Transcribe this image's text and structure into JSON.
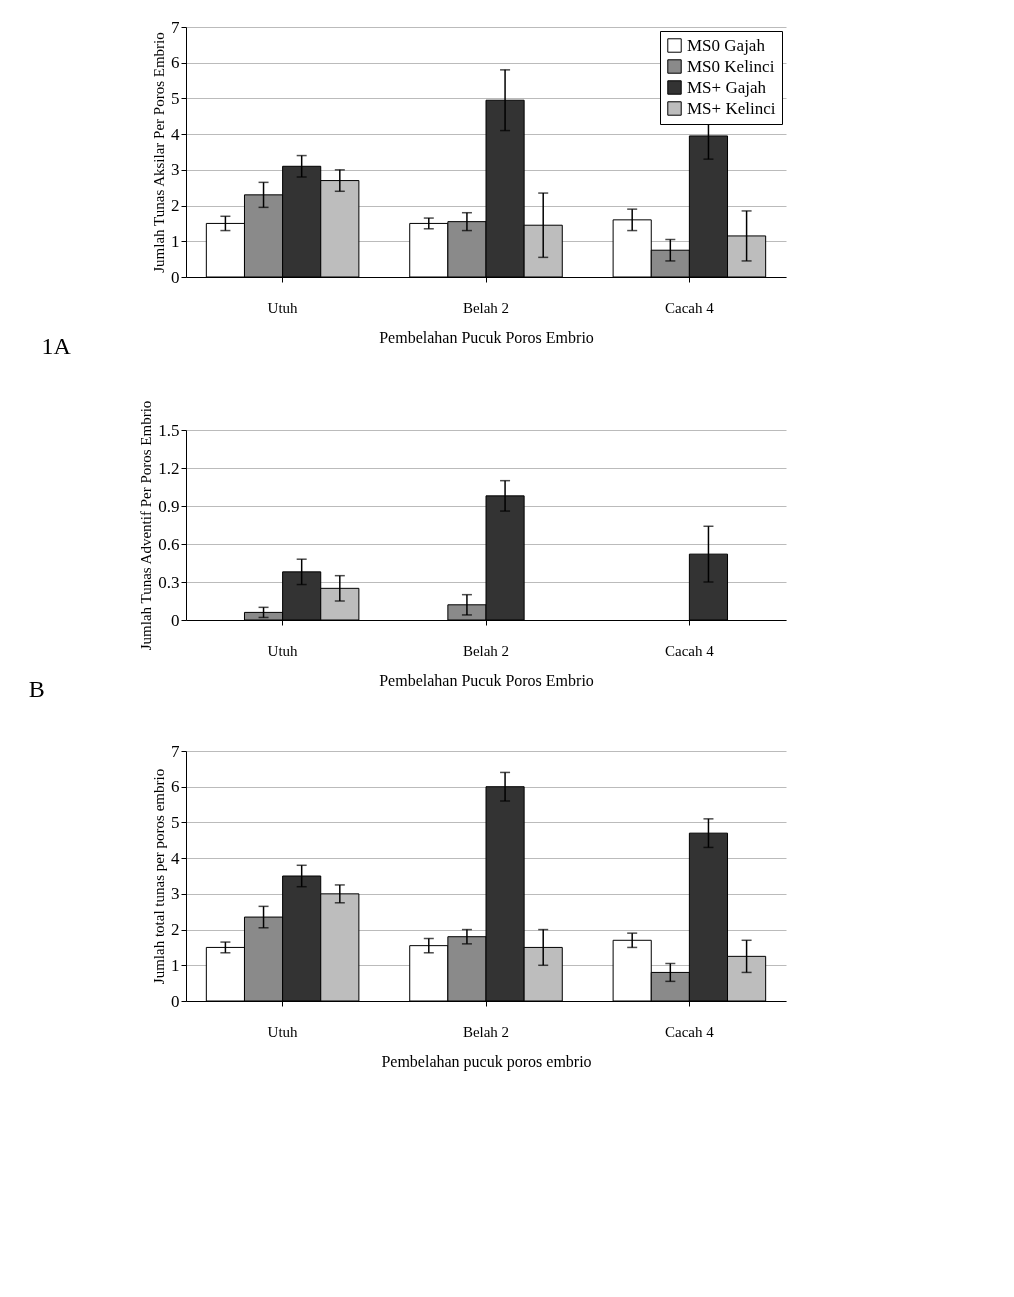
{
  "chart_data": [
    {
      "type": "bar",
      "xlabel": "Pembelahan Pucuk Poros Embrio",
      "ylabel": "Jumlah Tunas Aksilar Per Poros Embrio",
      "categories": [
        "Utuh",
        "Belah 2",
        "Cacah 4"
      ],
      "ylim": [
        0,
        7
      ],
      "yticks": [
        0,
        1,
        2,
        3,
        4,
        5,
        6,
        7
      ],
      "grid": "y",
      "legend": "top right",
      "annotations": [
        "1A"
      ],
      "series": [
        {
          "name": "MS0 Gajah",
          "color": "#ffffff",
          "values": [
            1.5,
            1.5,
            1.6
          ],
          "errors": [
            0.2,
            0.15,
            0.3
          ]
        },
        {
          "name": "MS0 Kelinci",
          "color": "#8a8a8a",
          "values": [
            2.3,
            1.55,
            0.75
          ],
          "errors": [
            0.35,
            0.25,
            0.3
          ]
        },
        {
          "name": "MS+ Gajah",
          "color": "#333333",
          "values": [
            3.1,
            4.95,
            3.95
          ],
          "errors": [
            0.3,
            0.85,
            0.65
          ]
        },
        {
          "name": "MS+ Kelinci",
          "color": "#bdbdbd",
          "values": [
            2.7,
            1.45,
            1.15
          ],
          "errors": [
            0.3,
            0.9,
            0.7
          ]
        }
      ]
    },
    {
      "type": "bar",
      "xlabel": "Pembelahan Pucuk Poros Embrio",
      "ylabel": "Jumlah Tunas Adventif Per Poros Embrio",
      "categories": [
        "Utuh",
        "Belah 2",
        "Cacah 4"
      ],
      "ylim": [
        0,
        1.5
      ],
      "yticks": [
        0,
        0.3,
        0.6,
        0.9,
        1.2,
        1.5
      ],
      "grid": "y",
      "annotations": [
        "B"
      ],
      "series": [
        {
          "color": "#ffffff",
          "values": [
            0,
            0,
            0
          ],
          "errors": [
            null,
            null,
            null
          ]
        },
        {
          "color": "#8a8a8a",
          "values": [
            0.06,
            0.12,
            0
          ],
          "errors": [
            0.04,
            0.08,
            null
          ]
        },
        {
          "color": "#333333",
          "values": [
            0.38,
            0.98,
            0.52
          ],
          "errors": [
            0.1,
            0.12,
            0.22
          ]
        },
        {
          "color": "#bdbdbd",
          "values": [
            0.25,
            0,
            0
          ],
          "errors": [
            0.1,
            null,
            null
          ]
        }
      ]
    },
    {
      "type": "bar",
      "xlabel": "Pembelahan pucuk poros embrio",
      "ylabel": "Jumlah total tunas per poros embrio",
      "categories": [
        "Utuh",
        "Belah 2",
        "Cacah 4"
      ],
      "ylim": [
        0,
        7
      ],
      "yticks": [
        0,
        1,
        2,
        3,
        4,
        5,
        6,
        7
      ],
      "grid": "y",
      "series": [
        {
          "color": "#ffffff",
          "values": [
            1.5,
            1.55,
            1.7
          ],
          "errors": [
            0.15,
            0.2,
            0.2
          ]
        },
        {
          "color": "#8a8a8a",
          "values": [
            2.35,
            1.8,
            0.8
          ],
          "errors": [
            0.3,
            0.2,
            0.25
          ]
        },
        {
          "color": "#333333",
          "values": [
            3.5,
            6.0,
            4.7
          ],
          "errors": [
            0.3,
            0.4,
            0.4
          ]
        },
        {
          "color": "#bdbdbd",
          "values": [
            3.0,
            1.5,
            1.25
          ],
          "errors": [
            0.25,
            0.5,
            0.45
          ]
        }
      ]
    }
  ]
}
